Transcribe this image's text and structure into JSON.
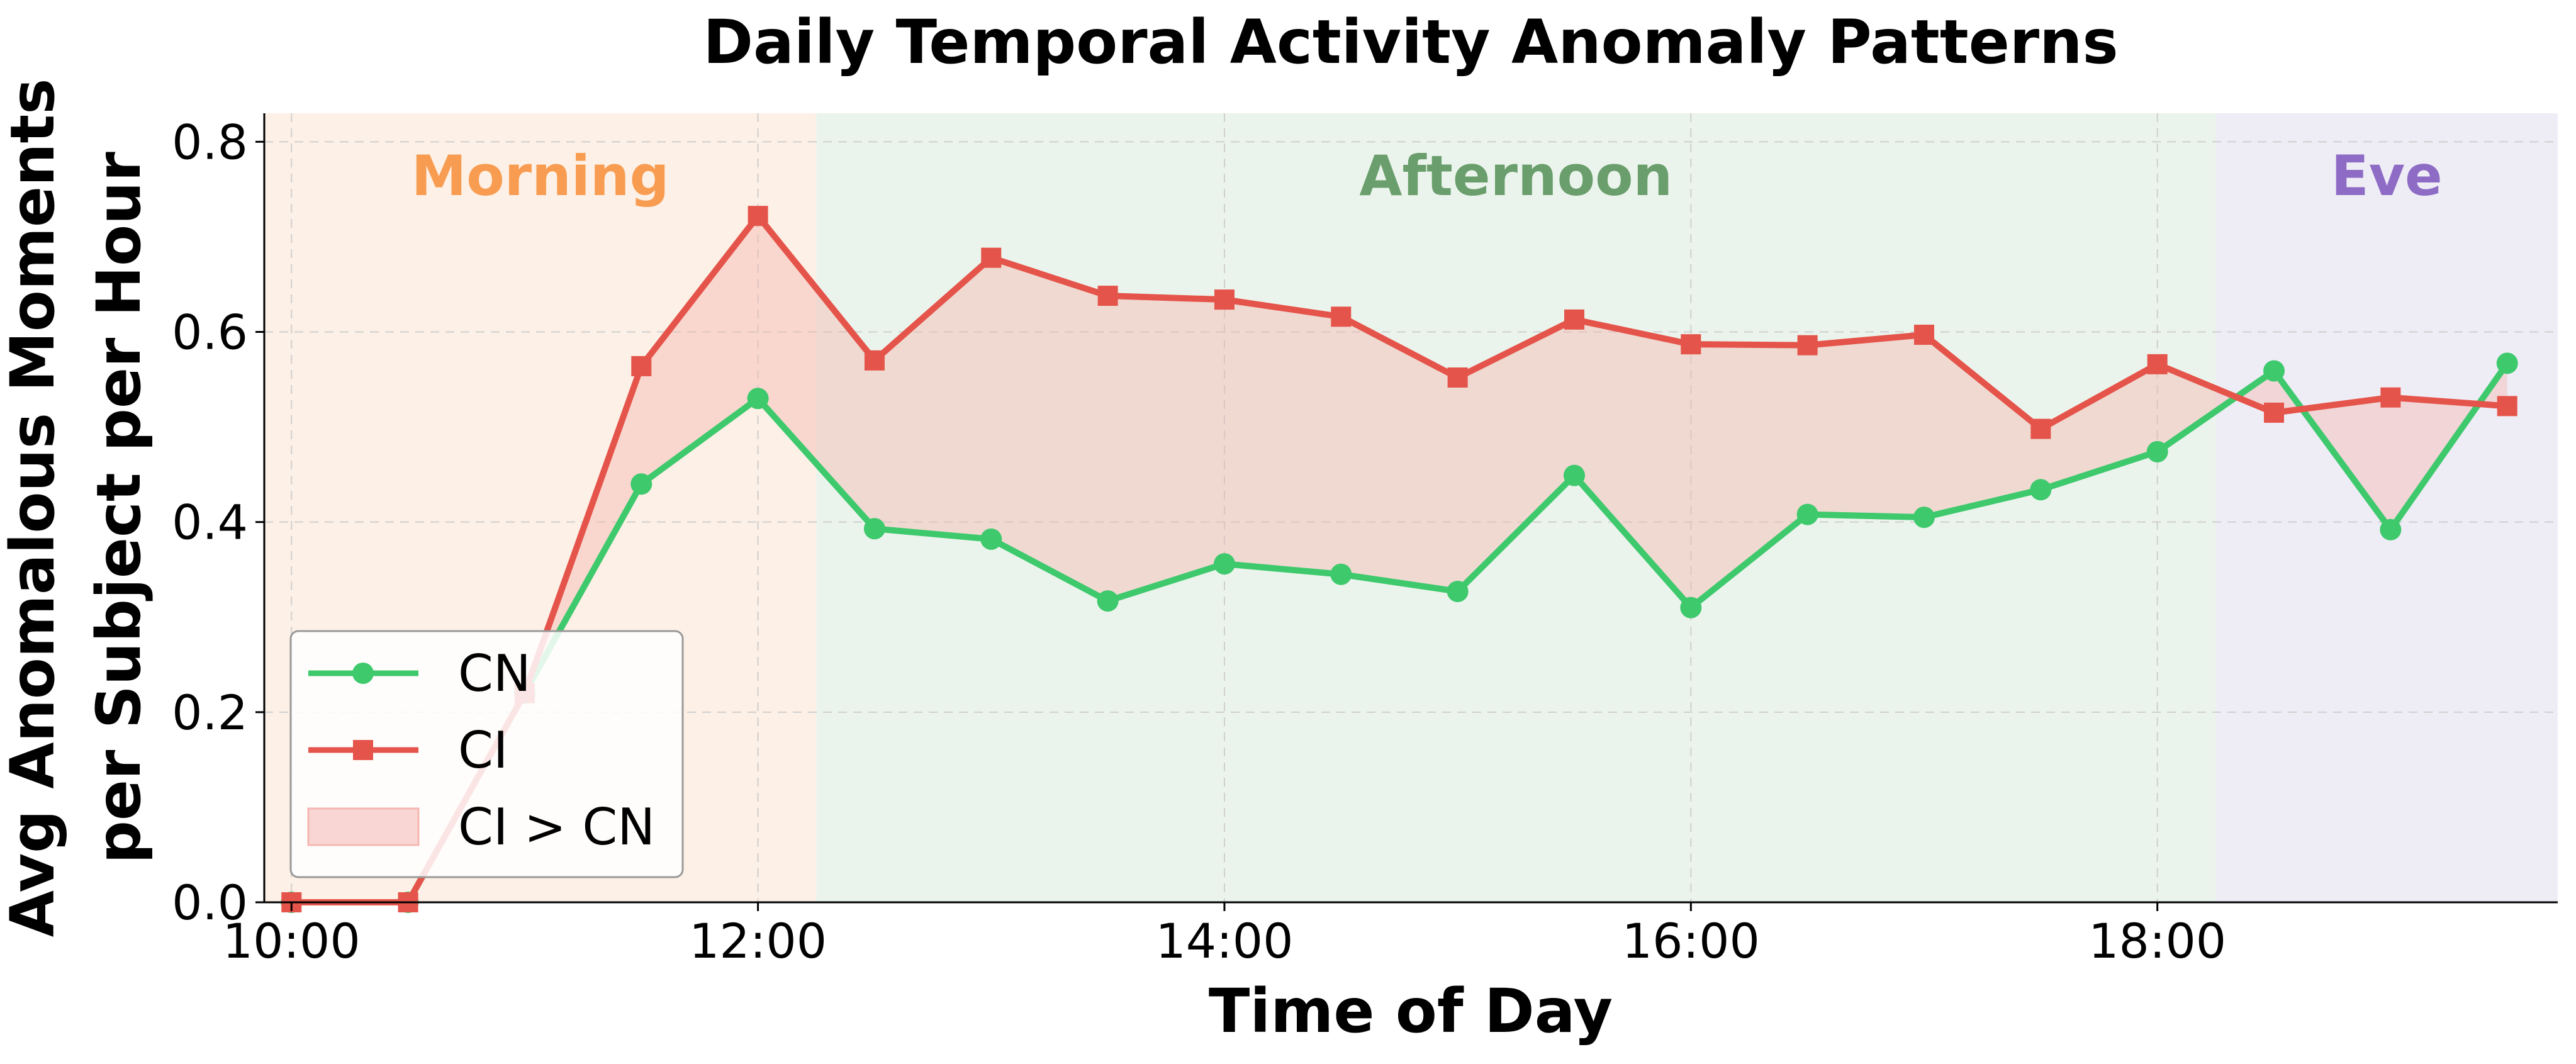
{
  "chart_data": {
    "type": "line",
    "title": "Daily Temporal Activity Anomaly Patterns",
    "xlabel": "Time of Day",
    "ylabel": [
      "Avg Anomalous Moments",
      "per Subject per Hour"
    ],
    "xlim": [
      "09:53",
      "19:43"
    ],
    "ylim": [
      0,
      0.83
    ],
    "x_ticks": [
      "10:00",
      "12:00",
      "14:00",
      "16:00",
      "18:00"
    ],
    "y_ticks": [
      "0.0",
      "0.2",
      "0.4",
      "0.6",
      "0.8"
    ],
    "grid": true,
    "legend_position": "lower-left",
    "regions": [
      {
        "label": "Morning",
        "start": "09:53",
        "end": "12:15",
        "color": "#fdf0e6",
        "text_color": "#f79c50"
      },
      {
        "label": "Afternoon",
        "start": "12:15",
        "end": "18:15",
        "color": "#ebf4ec",
        "text_color": "#6a9e6c"
      },
      {
        "label": "Eve",
        "start": "18:15",
        "end": "19:43",
        "color": "#eeedf6",
        "text_color": "#8e6bc4"
      }
    ],
    "x": [
      "10:00",
      "10:30",
      "11:00",
      "11:30",
      "12:00",
      "12:30",
      "13:00",
      "13:30",
      "14:00",
      "14:30",
      "15:00",
      "15:30",
      "16:00",
      "16:30",
      "17:00",
      "17:30",
      "18:00",
      "18:30",
      "19:00",
      "19:30"
    ],
    "series": [
      {
        "name": "CN",
        "color": "#3ec96d",
        "marker": "circle",
        "values": [
          0.0,
          0.0,
          0.22,
          0.44,
          0.53,
          0.393,
          0.382,
          0.317,
          0.356,
          0.345,
          0.327,
          0.449,
          0.31,
          0.408,
          0.405,
          0.434,
          0.474,
          0.559,
          0.392,
          0.567
        ]
      },
      {
        "name": "CI",
        "color": "#e5544a",
        "marker": "square",
        "values": [
          0.0,
          0.0,
          0.22,
          0.564,
          0.722,
          0.57,
          0.678,
          0.638,
          0.634,
          0.616,
          0.552,
          0.613,
          0.587,
          0.586,
          0.597,
          0.498,
          0.566,
          0.515,
          0.531,
          0.522
        ]
      }
    ],
    "fill": {
      "name": "CI > CN",
      "color": "#f4b7b2"
    }
  }
}
